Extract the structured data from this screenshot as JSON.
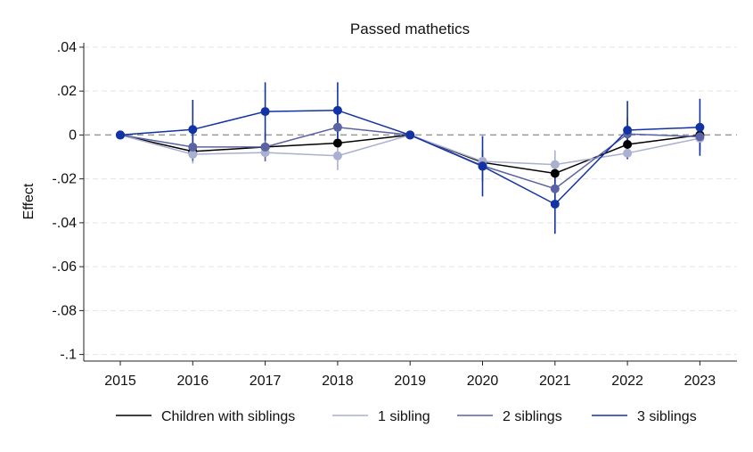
{
  "chart_data": {
    "type": "line",
    "title": "Passed mathetics",
    "xlabel": "",
    "ylabel": "Effect",
    "x": [
      2015,
      2016,
      2017,
      2018,
      2019,
      2020,
      2021,
      2022,
      2023
    ],
    "x_tick_labels": [
      "2015",
      "2016",
      "2017",
      "2018",
      "2019",
      "2020",
      "2021",
      "2022",
      "2023"
    ],
    "ylim": [
      -0.1,
      0.04
    ],
    "y_ticks": [
      0.04,
      0.02,
      0,
      -0.02,
      -0.04,
      -0.06,
      -0.08,
      -0.1
    ],
    "y_tick_labels": [
      ".04",
      ".02",
      "0",
      "-.02",
      "-.04",
      "-.06",
      "-.08",
      "-.1"
    ],
    "grid": "horizontal dashed",
    "reference_line_y": 0,
    "legend_position": "bottom",
    "series": [
      {
        "name": "Children with siblings",
        "color": "#000000",
        "values": [
          0,
          -0.0075,
          -0.0055,
          -0.0037,
          0,
          -0.0125,
          -0.0175,
          -0.0043,
          0
        ],
        "ci_low": [
          0,
          null,
          null,
          null,
          0,
          null,
          null,
          null,
          0
        ],
        "ci_high": [
          0,
          null,
          null,
          null,
          0,
          null,
          null,
          null,
          0
        ]
      },
      {
        "name": "1 sibling",
        "color": "#aab0d0",
        "values": [
          0,
          -0.0088,
          -0.008,
          -0.0095,
          0,
          -0.012,
          -0.0135,
          -0.0083,
          -0.0015
        ],
        "ci_low": [
          0,
          -0.013,
          -0.012,
          -0.016,
          0,
          -0.015,
          -0.02,
          -0.011,
          -0.004
        ],
        "ci_high": [
          0,
          -0.004,
          -0.004,
          -0.003,
          0,
          -0.009,
          -0.007,
          -0.005,
          0.001
        ]
      },
      {
        "name": "2 siblings",
        "color": "#5a63a3",
        "values": [
          0,
          -0.0055,
          -0.0055,
          0.0035,
          0,
          -0.014,
          -0.0245,
          0.0005,
          -0.0008
        ],
        "ci_low": [
          0,
          -0.012,
          -0.012,
          -0.004,
          0,
          -0.021,
          -0.033,
          -0.007,
          -0.007
        ],
        "ci_high": [
          0,
          0.001,
          0.001,
          0.011,
          0,
          -0.007,
          -0.016,
          0.008,
          0.005
        ]
      },
      {
        "name": "3 siblings",
        "color": "#1233a3",
        "values": [
          0,
          0.0025,
          0.0107,
          0.0112,
          0,
          -0.0143,
          -0.0315,
          0.0022,
          0.0035
        ],
        "ci_low": [
          0,
          -0.011,
          -0.0025,
          -0.0015,
          0,
          -0.028,
          -0.045,
          -0.011,
          -0.0095
        ],
        "ci_high": [
          0,
          0.016,
          0.024,
          0.024,
          0,
          -0.0005,
          -0.018,
          0.0155,
          0.0165
        ]
      }
    ]
  }
}
